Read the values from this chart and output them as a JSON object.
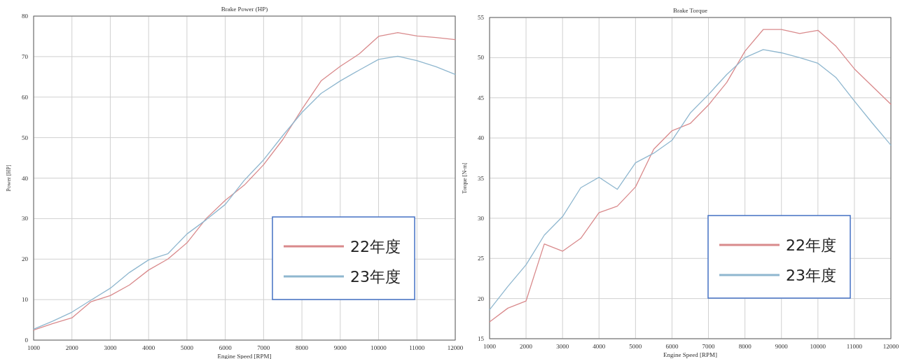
{
  "chart_data": [
    {
      "type": "line",
      "title": "Brake Power (HP)",
      "xlabel": "Engine Speed [RPM]",
      "ylabel": "Power [HP]",
      "x": [
        1000,
        1500,
        2000,
        2500,
        3000,
        3500,
        4000,
        4500,
        5000,
        5500,
        6000,
        6500,
        7000,
        7500,
        8000,
        8500,
        9000,
        9500,
        10000,
        10500,
        11000,
        11500,
        12000
      ],
      "series": [
        {
          "name": "22年度",
          "color": "#d98a8c",
          "values": [
            2.5,
            4.1,
            5.5,
            9.5,
            11,
            13.6,
            17.3,
            20,
            24,
            30,
            34.5,
            38.3,
            43.3,
            49.5,
            57,
            64,
            67.6,
            70.7,
            75,
            75.9,
            75.1,
            74.7,
            74.2
          ]
        },
        {
          "name": "23年度",
          "color": "#8fb7cf",
          "values": [
            2.7,
            4.7,
            6.9,
            9.9,
            12.8,
            16.7,
            19.8,
            21.3,
            26.2,
            29.7,
            33.5,
            39.5,
            44.5,
            50.5,
            56.2,
            60.9,
            64,
            66.7,
            69.3,
            70.1,
            69,
            67.5,
            65.6
          ]
        }
      ],
      "xlim": [
        1000,
        12000
      ],
      "xticks": [
        1000,
        2000,
        3000,
        4000,
        5000,
        6000,
        7000,
        8000,
        9000,
        10000,
        11000,
        12000
      ],
      "ylim": [
        0,
        80
      ],
      "yticks": [
        0,
        10,
        20,
        30,
        40,
        50,
        60,
        70,
        80
      ],
      "grid": true,
      "legend": "bottom right",
      "marker": "none",
      "line_style": "solid"
    },
    {
      "type": "line",
      "title": "Brake Torque",
      "xlabel": "Engine Speed [RPM]",
      "ylabel": "Torque [N-m]",
      "x": [
        1000,
        1500,
        2000,
        2500,
        3000,
        3500,
        4000,
        4500,
        5000,
        5500,
        6000,
        6500,
        7000,
        7500,
        8000,
        8500,
        9000,
        9500,
        10000,
        10500,
        11000,
        11500,
        12000
      ],
      "series": [
        {
          "name": "22年度",
          "color": "#d98a8c",
          "values": [
            17.1,
            18.8,
            19.7,
            26.8,
            25.9,
            27.5,
            30.7,
            31.5,
            33.9,
            38.6,
            40.9,
            41.8,
            44.1,
            46.9,
            50.8,
            53.5,
            53.5,
            53.0,
            53.4,
            51.4,
            48.6,
            46.4,
            44.2
          ]
        },
        {
          "name": "23年度",
          "color": "#8fb7cf",
          "values": [
            18.6,
            21.5,
            24.2,
            27.9,
            30.2,
            33.8,
            35.1,
            33.6,
            36.9,
            38.1,
            39.7,
            43.1,
            45.4,
            47.9,
            50.0,
            51.0,
            50.6,
            50.0,
            49.3,
            47.5,
            44.6,
            41.8,
            39.1
          ]
        }
      ],
      "xlim": [
        1000,
        12000
      ],
      "xticks": [
        1000,
        2000,
        3000,
        4000,
        5000,
        6000,
        7000,
        8000,
        9000,
        10000,
        11000,
        12000
      ],
      "ylim": [
        15,
        55
      ],
      "yticks": [
        15,
        20,
        25,
        30,
        35,
        40,
        45,
        50,
        55
      ],
      "grid": true,
      "legend": "bottom right",
      "marker": "none",
      "line_style": "solid"
    }
  ]
}
